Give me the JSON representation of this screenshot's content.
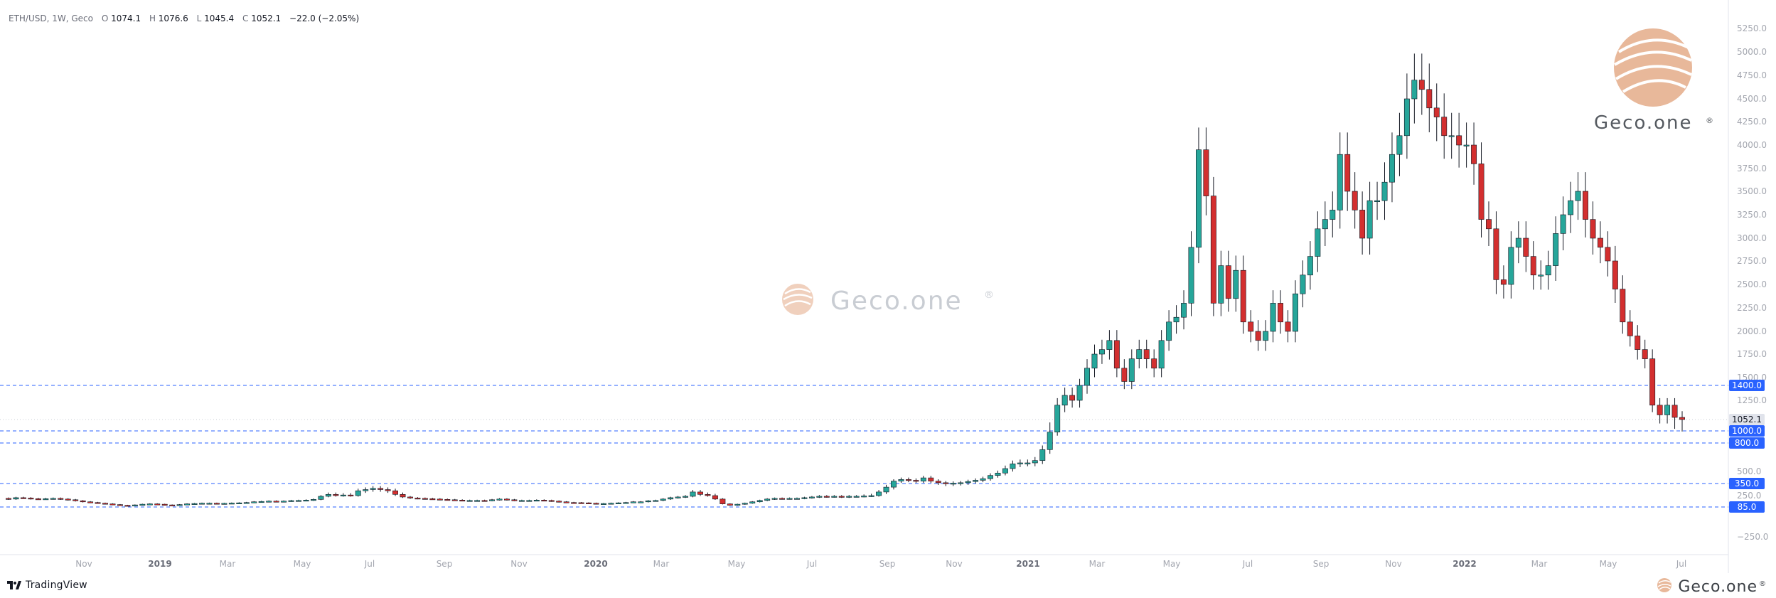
{
  "header": {
    "symbol": "ETH/USD, 1W, Geco",
    "open_label": "O",
    "open": "1074.1",
    "high_label": "H",
    "high": "1076.6",
    "low_label": "L",
    "low": "1045.4",
    "close_label": "C",
    "close": "1052.1",
    "change": "−22.0 (−2.05%)"
  },
  "footer": {
    "tradingview_label": "TradingView",
    "geco_label": "Geco.one",
    "registered": "®"
  },
  "watermark": {
    "label": "Geco.one",
    "registered": "®"
  },
  "logo": {
    "label": "Geco.one",
    "registered": "®"
  },
  "colors": {
    "up": "#26a69a",
    "down": "#d32f2f",
    "level_line": "#2962ff",
    "badge": "#2962ff",
    "price_badge": "#e0e3eb",
    "logo_peach": "#e8b89a"
  },
  "chart_data": {
    "type": "candlestick",
    "title": "ETH/USD, 1W, Geco",
    "x_axis_labels": [
      "Nov",
      "2019",
      "Mar",
      "May",
      "Jul",
      "Sep",
      "Nov",
      "2020",
      "Mar",
      "May",
      "Jul",
      "Sep",
      "Nov",
      "2021",
      "Mar",
      "May",
      "Jul",
      "Sep",
      "Nov",
      "2022",
      "Mar",
      "May",
      "Jul"
    ],
    "y_axis_labels": [
      "5250.0",
      "5000.0",
      "4750.0",
      "4500.0",
      "4250.0",
      "4000.0",
      "3750.0",
      "3500.0",
      "3250.0",
      "3000.0",
      "2750.0",
      "2500.0",
      "2250.0",
      "2000.0",
      "1750.0",
      "1500.0",
      "1250.0",
      "500.0",
      "250.0",
      "−250.0"
    ],
    "levels": [
      1400.0,
      1000.0,
      800.0,
      350.0,
      85.0
    ],
    "level_labels": [
      "1400.0",
      "1000.0",
      "800.0",
      "350.0",
      "85.0"
    ],
    "current_price": 1052.1,
    "current_price_label": "1052.1",
    "weekly_closes_approx": {
      "start": "2018-10",
      "end": "2022-07",
      "open": [
        210,
        200,
        220,
        215,
        205,
        200,
        205,
        210,
        200,
        190,
        175,
        160,
        150,
        140,
        130,
        120,
        110,
        100,
        115,
        125,
        130,
        125,
        115,
        110,
        120,
        130,
        135,
        140,
        140,
        135,
        138,
        142,
        145,
        150,
        160,
        165,
        170,
        165,
        170,
        178,
        180,
        185,
        195,
        240,
        260,
        250,
        255,
        250,
        290,
        300,
        310,
        300,
        290,
        260,
        230,
        215,
        210,
        205,
        200,
        195,
        190,
        185,
        180,
        180,
        180,
        178,
        190,
        200,
        190,
        180,
        180,
        180,
        185,
        180,
        170,
        160,
        150,
        148,
        145,
        140,
        130,
        135,
        140,
        145,
        150,
        160,
        160,
        175,
        180,
        200,
        220,
        230,
        240,
        280,
        260,
        250,
        200,
        130,
        110,
        125,
        140,
        160,
        180,
        200,
        210,
        205,
        210,
        210,
        220,
        230,
        240,
        235,
        240,
        230,
        240,
        240,
        245,
        250,
        280,
        320,
        380,
        400,
        390,
        380,
        420,
        380,
        360,
        350,
        355,
        360,
        375,
        390,
        410,
        450,
        480,
        530,
        580,
        590,
        590,
        615,
        730,
        980,
        1200,
        1300,
        1250,
        1400,
        1600,
        1750,
        1800,
        1900,
        1600,
        1450,
        1700,
        1800,
        1700,
        1600,
        1900,
        2100,
        2150,
        2300,
        2900,
        3950,
        3450,
        2300,
        2700,
        2350,
        2650,
        2100,
        2000,
        1900,
        2000,
        2300,
        2100,
        2000,
        2400,
        2600,
        2800,
        3100,
        3200,
        3300,
        3900,
        3500,
        3300,
        3000,
        3400,
        3400,
        3600,
        3900,
        4100,
        4500,
        4700,
        4600,
        4400,
        4300,
        4100,
        4100,
        4000,
        4000,
        3800,
        3200,
        3100,
        2550,
        2500,
        2900,
        3000,
        2800,
        2600,
        2600,
        2700,
        3050,
        3250,
        3400,
        3500,
        3200,
        3000,
        2900,
        2750,
        2450,
        2100,
        1950,
        1800,
        1700,
        1200,
        1100,
        1200,
        1074.1
      ],
      "close": [
        200,
        220,
        215,
        205,
        200,
        205,
        210,
        200,
        190,
        175,
        160,
        150,
        140,
        130,
        120,
        110,
        100,
        115,
        125,
        130,
        125,
        115,
        110,
        120,
        130,
        135,
        140,
        140,
        135,
        138,
        142,
        145,
        150,
        160,
        165,
        170,
        165,
        170,
        178,
        180,
        185,
        195,
        240,
        260,
        250,
        255,
        250,
        290,
        300,
        310,
        300,
        290,
        260,
        230,
        215,
        210,
        205,
        200,
        195,
        190,
        185,
        180,
        180,
        180,
        178,
        190,
        200,
        190,
        180,
        180,
        180,
        185,
        180,
        170,
        160,
        150,
        148,
        145,
        140,
        130,
        135,
        140,
        145,
        150,
        160,
        160,
        175,
        180,
        200,
        220,
        230,
        240,
        280,
        260,
        250,
        200,
        130,
        110,
        125,
        140,
        160,
        180,
        200,
        210,
        205,
        210,
        210,
        220,
        230,
        240,
        235,
        240,
        230,
        240,
        240,
        245,
        250,
        280,
        320,
        380,
        400,
        390,
        380,
        420,
        380,
        360,
        350,
        355,
        360,
        375,
        390,
        410,
        450,
        480,
        530,
        580,
        590,
        590,
        615,
        730,
        980,
        1200,
        1300,
        1250,
        1400,
        1600,
        1750,
        1800,
        1900,
        1600,
        1450,
        1700,
        1800,
        1700,
        1600,
        1900,
        2100,
        2150,
        2300,
        2900,
        3950,
        3450,
        2300,
        2700,
        2350,
        2650,
        2100,
        2000,
        1900,
        2000,
        2300,
        2100,
        2000,
        2400,
        2600,
        2800,
        3100,
        3200,
        3300,
        3900,
        3500,
        3300,
        3000,
        3400,
        3400,
        3600,
        3900,
        4100,
        4500,
        4700,
        4600,
        4400,
        4300,
        4100,
        4100,
        4000,
        4000,
        3800,
        3200,
        3100,
        2550,
        2500,
        2900,
        3000,
        2800,
        2600,
        2600,
        2700,
        3050,
        3250,
        3400,
        3500,
        3200,
        3000,
        2900,
        2750,
        2450,
        2100,
        1950,
        1800,
        1700,
        1200,
        1100,
        1200,
        1074.1,
        1052.1
      ]
    },
    "grid": false
  }
}
